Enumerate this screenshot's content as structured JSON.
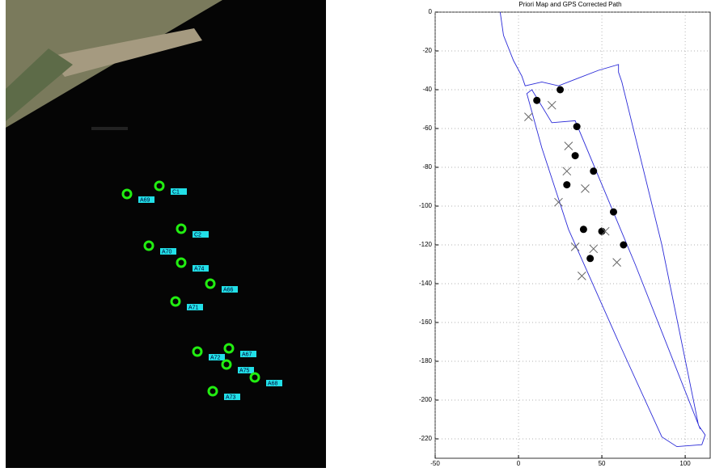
{
  "image": {
    "markers": [
      "C1",
      "A69",
      "C2",
      "A70",
      "A74",
      "A66",
      "A71",
      "A67",
      "A72",
      "A75",
      "A68",
      "A73"
    ]
  },
  "chart_data": {
    "type": "line",
    "title": "Priori Map and GPS Corrected Path",
    "xlim": [
      -50,
      115
    ],
    "xticks": [
      -50,
      0,
      50,
      100
    ],
    "ylim": [
      -230,
      0
    ],
    "yticks": [
      0,
      -20,
      -40,
      -60,
      -80,
      -100,
      -120,
      -140,
      -160,
      -180,
      -200,
      -220
    ],
    "grid": true,
    "series": [
      {
        "color": "#2b2bd8",
        "marker": "none",
        "x": [
          -11,
          -9,
          -3,
          2,
          4,
          14,
          24,
          36,
          48,
          60,
          60,
          62,
          86,
          108,
          112,
          110,
          95,
          86,
          60,
          30,
          14,
          5,
          8,
          20,
          34,
          70,
          109
        ],
        "y": [
          0,
          -12,
          -25,
          -33,
          -38,
          -36,
          -38,
          -34,
          -30,
          -27,
          -31,
          -36,
          -120,
          -213,
          -218,
          -223,
          -224,
          -219,
          -170,
          -112,
          -70,
          -42,
          -40,
          -57,
          -56,
          -130,
          -215
        ]
      },
      {
        "color": "#000000",
        "marker": "dot",
        "x": [
          25,
          11,
          35,
          34,
          45,
          29,
          57,
          50,
          39,
          63,
          43
        ],
        "y": [
          -40,
          -45.5,
          -59,
          -74,
          -82,
          -89,
          -103,
          -113,
          -112,
          -120,
          -127
        ]
      },
      {
        "color": "#666666",
        "marker": "x",
        "x": [
          6,
          20,
          30,
          29,
          40,
          24,
          52,
          34,
          45,
          59,
          38
        ],
        "y": [
          -54,
          -48,
          -69,
          -82,
          -91,
          -98,
          -113,
          -121,
          -122,
          -129,
          -136
        ]
      }
    ]
  }
}
